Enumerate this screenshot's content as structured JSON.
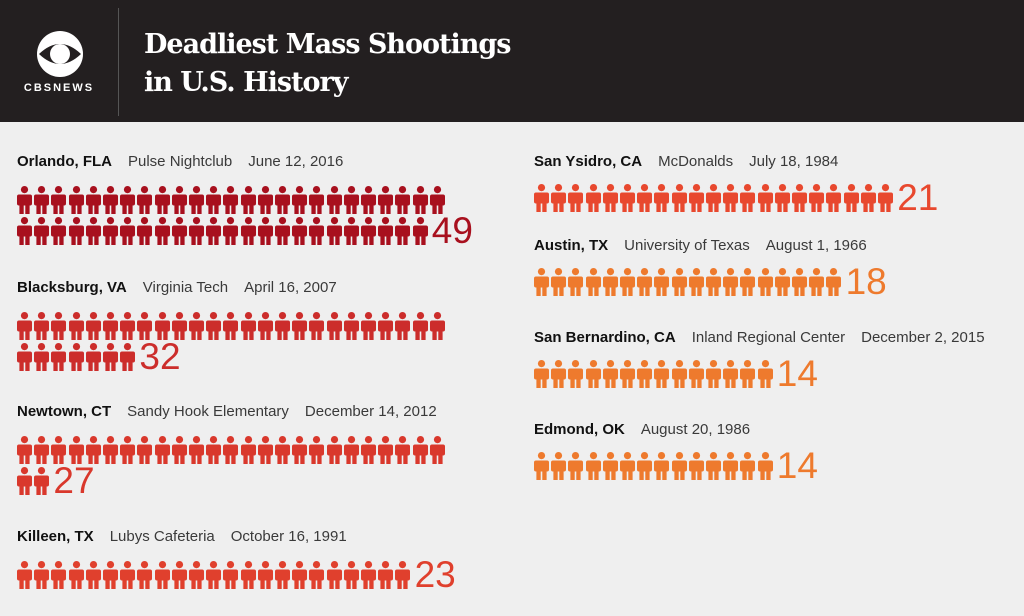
{
  "header": {
    "logo_text": "CBSNEWS",
    "title_line1": "Deadliest Mass Shootings",
    "title_line2": "in U.S. History"
  },
  "colors": {
    "header_bg": "#231f20",
    "background": "#efefef",
    "dark_red": "#a8101e",
    "red": "#cc2d2b",
    "red_orange": "#e8482e",
    "orange": "#ee7a2d"
  },
  "chart_data": {
    "type": "pictogram",
    "title": "Deadliest Mass Shootings in U.S. History",
    "unit": "deaths",
    "entries": [
      {
        "city": "Orlando, FLA",
        "place": "Pulse Nightclub",
        "date": "June 12, 2016",
        "count": 49,
        "label": "49",
        "color": "#a8101e"
      },
      {
        "city": "Blacksburg, VA",
        "place": "Virginia Tech",
        "date": "April 16, 2007",
        "count": 32,
        "label": "32",
        "color": "#cc2d2b"
      },
      {
        "city": "Newtown, CT",
        "place": "Sandy Hook Elementary",
        "date": "December 14, 2012",
        "count": 27,
        "label": "27",
        "color": "#d9382c"
      },
      {
        "city": "Killeen, TX",
        "place": "Lubys Cafeteria",
        "date": "October 16, 1991",
        "count": 23,
        "label": "23",
        "color": "#e0402d"
      },
      {
        "city": "San Ysidro, CA",
        "place": "McDonalds",
        "date": "July 18, 1984",
        "count": 21,
        "label": "21",
        "color": "#e8482e"
      },
      {
        "city": "Austin, TX",
        "place": "University of Texas",
        "date": "August 1, 1966",
        "count": 18,
        "label": "18",
        "color": "#ee7a2d"
      },
      {
        "city": "San Bernardino, CA",
        "place": "Inland Regional Center",
        "date": "December 2, 2015",
        "count": 14,
        "label": "14",
        "color": "#ee7a2d"
      },
      {
        "city": "Edmond, OK",
        "place": "",
        "date": "August 20, 1986",
        "count": 14,
        "label": "14",
        "color": "#ee7a2d"
      }
    ]
  }
}
